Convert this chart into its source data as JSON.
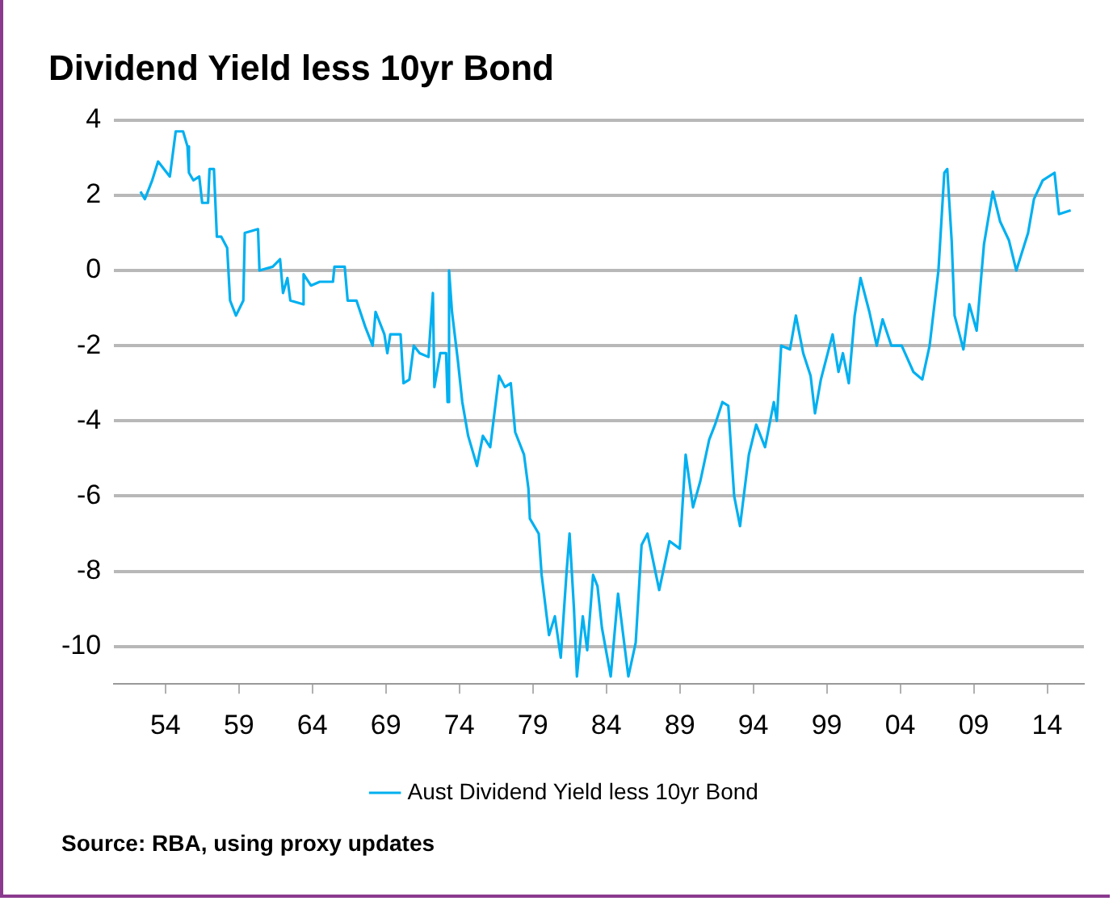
{
  "chart_data": {
    "type": "line",
    "title": "Dividend Yield less 10yr Bond",
    "annotations": [
      "Source: RBA, using proxy updates"
    ],
    "xlim": [
      1950.5,
      2016.5
    ],
    "xticks": [
      {
        "value": 1954,
        "label": "54"
      },
      {
        "value": 1959,
        "label": "59"
      },
      {
        "value": 1964,
        "label": "64"
      },
      {
        "value": 1969,
        "label": "69"
      },
      {
        "value": 1974,
        "label": "74"
      },
      {
        "value": 1979,
        "label": "79"
      },
      {
        "value": 1984,
        "label": "84"
      },
      {
        "value": 1989,
        "label": "89"
      },
      {
        "value": 1994,
        "label": "94"
      },
      {
        "value": 1999,
        "label": "99"
      },
      {
        "value": 2004,
        "label": "04"
      },
      {
        "value": 2009,
        "label": "09"
      },
      {
        "value": 2014,
        "label": "14"
      }
    ],
    "ylim": [
      -11,
      4
    ],
    "yticks": [
      -10,
      -8,
      -6,
      -4,
      -2,
      0,
      2,
      4
    ],
    "grid": "y",
    "legend": "bottom",
    "marker": "none",
    "line_style": "solid",
    "series": [
      {
        "name": "Aust Dividend Yield less 10yr Bond",
        "color": "#00b0f0",
        "x": [
          1952.3,
          1952.6,
          1953.1,
          1953.5,
          1954.3,
          1954.7,
          1955.2,
          1955.5,
          1955.6,
          1955.9,
          1956.3,
          1956.5,
          1956.9,
          1957.0,
          1957.3,
          1957.5,
          1957.8,
          1958.2,
          1958.4,
          1958.8,
          1959.3,
          1959.4,
          1960.3,
          1960.4,
          1961.3,
          1961.8,
          1962.0,
          1962.3,
          1962.5,
          1963.4,
          1963.4,
          1963.9,
          1964.5,
          1965.4,
          1965.5,
          1966.2,
          1966.4,
          1967.0,
          1967.6,
          1968.1,
          1968.3,
          1968.9,
          1969.1,
          1969.3,
          1970.0,
          1970.2,
          1970.6,
          1970.9,
          1971.3,
          1971.9,
          1972.2,
          1972.3,
          1972.7,
          1973.1,
          1973.2,
          1973.3,
          1973.5,
          1973.9,
          1974.2,
          1974.6,
          1975.2,
          1975.6,
          1976.1,
          1976.7,
          1977.1,
          1977.5,
          1977.8,
          1978.4,
          1978.7,
          1978.8,
          1979.4,
          1979.6,
          1980.1,
          1980.5,
          1980.9,
          1981.3,
          1981.5,
          1981.8,
          1982.0,
          1982.4,
          1982.7,
          1983.1,
          1983.4,
          1983.7,
          1984.3,
          1984.8,
          1985.5,
          1986.0,
          1986.4,
          1986.8,
          1987.6,
          1988.3,
          1989.0,
          1989.4,
          1989.9,
          1990.4,
          1991.0,
          1991.4,
          1991.9,
          1992.3,
          1992.7,
          1993.1,
          1993.7,
          1994.2,
          1994.8,
          1995.4,
          1995.6,
          1995.9,
          1996.5,
          1996.9,
          1997.4,
          1997.9,
          1998.2,
          1998.6,
          1999.4,
          1999.8,
          2000.1,
          2000.5,
          2000.9,
          2001.3,
          2001.9,
          2002.4,
          2002.8,
          2003.4,
          2004.1,
          2004.9,
          2005.5,
          2006.0,
          2006.6,
          2007.0,
          2007.2,
          2007.5,
          2007.7,
          2008.3,
          2008.7,
          2009.2,
          2009.7,
          2010.3,
          2010.8,
          2011.4,
          2011.9,
          2012.7,
          2013.1,
          2013.7,
          2014.5,
          2014.8,
          2015.6
        ],
        "values": [
          2.1,
          1.9,
          2.4,
          2.9,
          2.5,
          3.7,
          3.7,
          3.3,
          2.6,
          2.4,
          2.5,
          1.8,
          1.8,
          2.7,
          2.7,
          0.9,
          0.9,
          0.6,
          -0.8,
          -1.2,
          -0.8,
          1.0,
          1.1,
          0.0,
          0.1,
          0.3,
          -0.6,
          -0.2,
          -0.8,
          -0.9,
          -0.1,
          -0.4,
          -0.3,
          -0.3,
          0.1,
          0.1,
          -0.8,
          -0.8,
          -1.5,
          -2.0,
          -1.1,
          -1.7,
          -2.2,
          -1.7,
          -1.7,
          -3.0,
          -2.9,
          -2.0,
          -2.2,
          -2.3,
          -0.6,
          -3.1,
          -2.2,
          -2.2,
          -3.5,
          0.0,
          -1.1,
          -2.4,
          -3.5,
          -4.4,
          -5.2,
          -4.4,
          -4.7,
          -2.8,
          -3.1,
          -3.0,
          -4.3,
          -4.9,
          -5.8,
          -6.6,
          -7.0,
          -8.1,
          -9.7,
          -9.2,
          -10.3,
          -8.0,
          -7.0,
          -9.0,
          -10.8,
          -9.2,
          -10.1,
          -8.1,
          -8.4,
          -9.5,
          -10.8,
          -8.6,
          -10.8,
          -9.9,
          -7.3,
          -7.0,
          -8.5,
          -7.2,
          -7.4,
          -4.9,
          -6.3,
          -5.6,
          -4.5,
          -4.1,
          -3.5,
          -3.6,
          -6.0,
          -6.8,
          -4.9,
          -4.1,
          -4.7,
          -3.5,
          -4.0,
          -2.0,
          -2.1,
          -1.2,
          -2.2,
          -2.8,
          -3.8,
          -2.9,
          -1.7,
          -2.7,
          -2.2,
          -3.0,
          -1.2,
          -0.2,
          -1.1,
          -2.0,
          -1.3,
          -2.0,
          -2.0,
          -2.7,
          -2.9,
          -2.0,
          0.0,
          2.6,
          2.7,
          0.8,
          -1.2,
          -2.1,
          -0.9,
          -1.6,
          0.7,
          2.1,
          1.3,
          0.8,
          0.0,
          1.0,
          1.9,
          2.4,
          2.6,
          1.5,
          1.6
        ]
      }
    ]
  }
}
